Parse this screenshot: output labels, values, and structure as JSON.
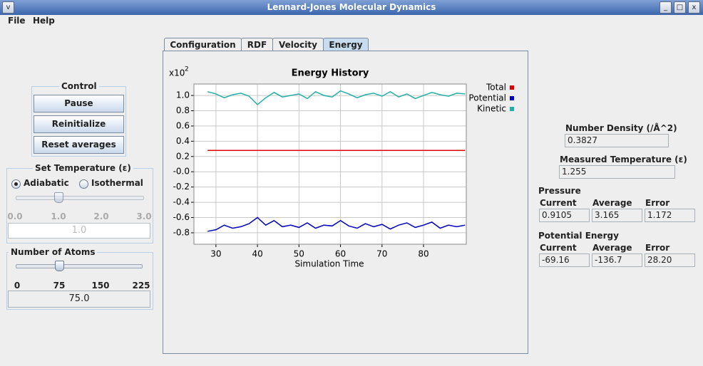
{
  "window": {
    "title": "Lennard-Jones Molecular Dynamics"
  },
  "menu": [
    "File",
    "Help"
  ],
  "control": {
    "title": "Control",
    "buttons": [
      "Pause",
      "Reinitialize",
      "Reset averages"
    ]
  },
  "temperature": {
    "title": "Set Temperature (ε)",
    "modes": [
      "Adiabatic",
      "Isothermal"
    ],
    "selected": 0,
    "slider_ticks": [
      "0.0",
      "1.0",
      "2.0",
      "3.0"
    ],
    "value": "1.0"
  },
  "atoms": {
    "title": "Number of Atoms",
    "slider_ticks": [
      "0",
      "75",
      "150",
      "225"
    ],
    "value": "75.0"
  },
  "tabs": [
    "Configuration",
    "RDF",
    "Velocity",
    "Energy"
  ],
  "selected_tab": 3,
  "chart_data": {
    "type": "line",
    "title": "Energy History",
    "y_multiplier": "x10",
    "y_multiplier_exponent": "2",
    "xlabel": "Simulation Time",
    "x": [
      28,
      30,
      32,
      34,
      36,
      38,
      40,
      42,
      44,
      46,
      48,
      50,
      52,
      54,
      56,
      58,
      60,
      62,
      64,
      66,
      68,
      70,
      72,
      74,
      76,
      78,
      80,
      82,
      84,
      86,
      88,
      90
    ],
    "series": [
      {
        "name": "Total",
        "color": "#e00000",
        "values": [
          0.28,
          0.28,
          0.28,
          0.28,
          0.28,
          0.28,
          0.28,
          0.28,
          0.28,
          0.28,
          0.28,
          0.28,
          0.28,
          0.28,
          0.28,
          0.28,
          0.28,
          0.28,
          0.28,
          0.28,
          0.28,
          0.28,
          0.28,
          0.28,
          0.28,
          0.28,
          0.28,
          0.28,
          0.28,
          0.28,
          0.28,
          0.28
        ]
      },
      {
        "name": "Potential",
        "color": "#0000c0",
        "values": [
          -0.78,
          -0.76,
          -0.7,
          -0.74,
          -0.72,
          -0.68,
          -0.6,
          -0.7,
          -0.64,
          -0.72,
          -0.7,
          -0.73,
          -0.67,
          -0.74,
          -0.7,
          -0.71,
          -0.64,
          -0.71,
          -0.74,
          -0.68,
          -0.72,
          -0.69,
          -0.75,
          -0.7,
          -0.67,
          -0.73,
          -0.7,
          -0.66,
          -0.74,
          -0.7,
          -0.72,
          -0.7
        ]
      },
      {
        "name": "Kinetic",
        "color": "#20b0a8",
        "values": [
          1.05,
          1.02,
          0.97,
          1.01,
          1.03,
          0.99,
          0.88,
          0.97,
          1.04,
          0.98,
          1.0,
          1.02,
          0.96,
          1.05,
          1.0,
          0.98,
          1.06,
          1.02,
          0.97,
          1.01,
          1.03,
          0.99,
          1.05,
          0.98,
          1.02,
          0.96,
          1.0,
          1.04,
          1.01,
          0.99,
          1.03,
          1.02
        ]
      }
    ],
    "xlim": [
      24.7,
      90.3
    ],
    "xticks": [
      30,
      40,
      50,
      60,
      70,
      80
    ],
    "ylim": [
      -0.95,
      1.15
    ],
    "yticks": [
      {
        "value": 1.0,
        "label": "1.0"
      },
      {
        "value": 0.8,
        "label": "0.8"
      },
      {
        "value": 0.6,
        "label": "0.6"
      },
      {
        "value": 0.4,
        "label": "0.4"
      },
      {
        "value": 0.2,
        "label": "0.2"
      },
      {
        "value": 0,
        "label": "-0.0"
      },
      {
        "value": -0.2,
        "label": "-0.2"
      },
      {
        "value": -0.4,
        "label": "-0.4"
      },
      {
        "value": -0.6,
        "label": "-0.6"
      },
      {
        "value": -0.8,
        "label": "-0.8"
      }
    ],
    "grid": true,
    "legend": "top-right"
  },
  "number_density": {
    "label": "Number Density (/Å^2)",
    "value": "0.3827"
  },
  "measured_temperature": {
    "label": "Measured Temperature (ε)",
    "value": "1.255"
  },
  "pressure": {
    "title": "Pressure",
    "headers": [
      "Current",
      "Average",
      "Error"
    ],
    "values": [
      "0.9105",
      "3.165",
      "1.172"
    ]
  },
  "potential_energy": {
    "title": "Potential Energy",
    "headers": [
      "Current",
      "Average",
      "Error"
    ],
    "values": [
      "-69.16",
      "-136.7",
      "28.20"
    ]
  }
}
